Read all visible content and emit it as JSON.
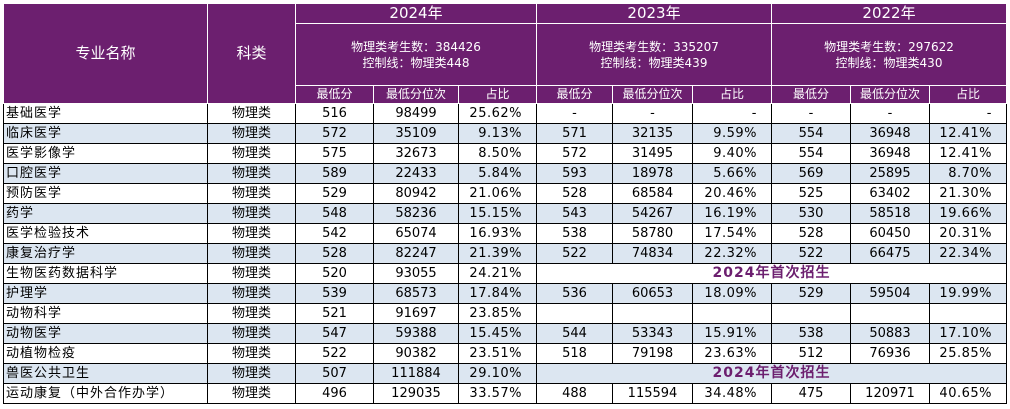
{
  "header": {
    "col_major": "专业名称",
    "col_category": "科类",
    "years": [
      {
        "year": "2024年",
        "info_line1": "物理类考生数：384426",
        "info_line2": "控制线：物理类448"
      },
      {
        "year": "2023年",
        "info_line1": "物理类考生数：335207",
        "info_line2": "控制线：物理类439"
      },
      {
        "year": "2022年",
        "info_line1": "物理类考生数：297622",
        "info_line2": "控制线：物理类430"
      }
    ],
    "sub_min": "最低分",
    "sub_rank": "最低分位次",
    "sub_ratio": "占比"
  },
  "rows": [
    {
      "name": "基础医学",
      "cat": "物理类",
      "y24": [
        "516",
        "98499",
        "25.62%"
      ],
      "y23": [
        "-",
        "-",
        "-"
      ],
      "y22": [
        "-",
        "-",
        "-"
      ]
    },
    {
      "name": "临床医学",
      "cat": "物理类",
      "y24": [
        "572",
        "35109",
        "9.13%"
      ],
      "y23": [
        "571",
        "32135",
        "9.59%"
      ],
      "y22": [
        "554",
        "36948",
        "12.41%"
      ]
    },
    {
      "name": "医学影像学",
      "cat": "物理类",
      "y24": [
        "575",
        "32673",
        "8.50%"
      ],
      "y23": [
        "572",
        "31495",
        "9.40%"
      ],
      "y22": [
        "554",
        "36948",
        "12.41%"
      ]
    },
    {
      "name": "口腔医学",
      "cat": "物理类",
      "y24": [
        "589",
        "22433",
        "5.84%"
      ],
      "y23": [
        "593",
        "18978",
        "5.66%"
      ],
      "y22": [
        "569",
        "25895",
        "8.70%"
      ]
    },
    {
      "name": "预防医学",
      "cat": "物理类",
      "y24": [
        "529",
        "80942",
        "21.06%"
      ],
      "y23": [
        "528",
        "68584",
        "20.46%"
      ],
      "y22": [
        "525",
        "63402",
        "21.30%"
      ]
    },
    {
      "name": "药学",
      "cat": "物理类",
      "y24": [
        "548",
        "58236",
        "15.15%"
      ],
      "y23": [
        "543",
        "54267",
        "16.19%"
      ],
      "y22": [
        "530",
        "58518",
        "19.66%"
      ]
    },
    {
      "name": "医学检验技术",
      "cat": "物理类",
      "y24": [
        "542",
        "65074",
        "16.93%"
      ],
      "y23": [
        "538",
        "58780",
        "17.54%"
      ],
      "y22": [
        "528",
        "60450",
        "20.31%"
      ]
    },
    {
      "name": "康复治疗学",
      "cat": "物理类",
      "y24": [
        "528",
        "82247",
        "21.39%"
      ],
      "y23": [
        "522",
        "74834",
        "22.32%"
      ],
      "y22": [
        "522",
        "66475",
        "22.34%"
      ]
    },
    {
      "name": "生物医药数据科学",
      "cat": "物理类",
      "y24": [
        "520",
        "93055",
        "24.21%"
      ],
      "note": "2024年首次招生"
    },
    {
      "name": "护理学",
      "cat": "物理类",
      "y24": [
        "539",
        "68573",
        "17.84%"
      ],
      "y23": [
        "536",
        "60653",
        "18.09%"
      ],
      "y22": [
        "529",
        "59504",
        "19.99%"
      ]
    },
    {
      "name": "动物科学",
      "cat": "物理类",
      "y24": [
        "521",
        "91697",
        "23.85%"
      ],
      "y23": [
        "",
        "",
        ""
      ],
      "y22": [
        "",
        "",
        ""
      ]
    },
    {
      "name": "动物医学",
      "cat": "物理类",
      "y24": [
        "547",
        "59388",
        "15.45%"
      ],
      "y23": [
        "544",
        "53343",
        "15.91%"
      ],
      "y22": [
        "538",
        "50883",
        "17.10%"
      ]
    },
    {
      "name": "动植物检疫",
      "cat": "物理类",
      "y24": [
        "522",
        "90382",
        "23.51%"
      ],
      "y23": [
        "518",
        "79198",
        "23.63%"
      ],
      "y22": [
        "512",
        "76936",
        "25.85%"
      ]
    },
    {
      "name": "兽医公共卫生",
      "cat": "物理类",
      "y24": [
        "507",
        "111884",
        "29.10%"
      ],
      "note": "2024年首次招生"
    },
    {
      "name": "运动康复（中外合作办学）",
      "cat": "物理类",
      "y24": [
        "496",
        "129035",
        "33.57%"
      ],
      "y23": [
        "488",
        "115594",
        "34.48%"
      ],
      "y22": [
        "475",
        "120971",
        "40.65%"
      ]
    }
  ],
  "row_shading": [
    "w",
    "alt",
    "w",
    "alt",
    "w",
    "alt",
    "w",
    "alt",
    "w",
    "alt",
    "w",
    "alt",
    "w",
    "alt",
    "w"
  ]
}
